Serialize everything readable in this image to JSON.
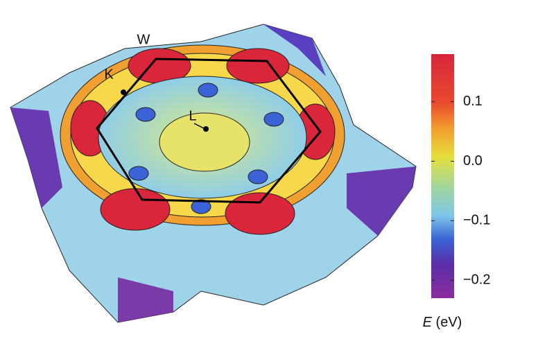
{
  "surface": {
    "point_labels": [
      "W",
      "K",
      "L"
    ]
  },
  "colorbar": {
    "label_symbol": "E",
    "label_unit": "(eV)",
    "lim": [
      -0.23,
      0.18
    ],
    "ticks": [
      0.1,
      {
        "value": 0,
        "label": "0.0"
      },
      {
        "value": -0.1,
        "label": "−0.1"
      },
      {
        "value": -0.2,
        "label": "−0.2"
      }
    ]
  }
}
